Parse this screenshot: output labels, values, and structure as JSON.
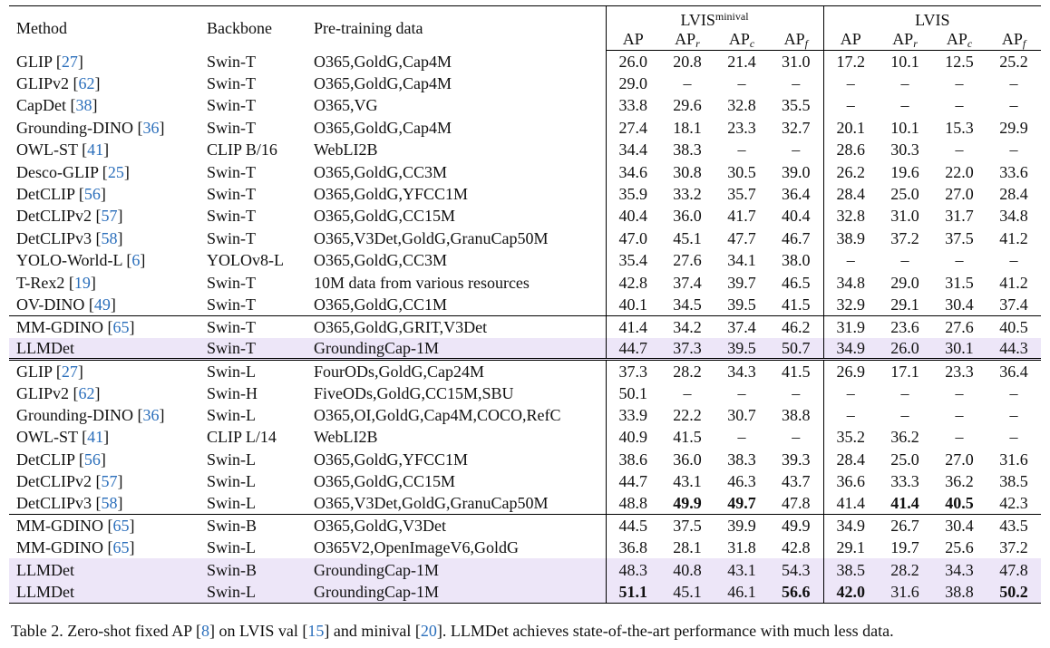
{
  "header": {
    "columns": [
      "Method",
      "Backbone",
      "Pre-training data"
    ],
    "groups": [
      {
        "text": "LVIS",
        "sup": "minival"
      },
      {
        "text": "LVIS"
      }
    ],
    "metrics": [
      {
        "base": "AP"
      },
      {
        "base": "AP",
        "sub": "r"
      },
      {
        "base": "AP",
        "sub": "c"
      },
      {
        "base": "AP",
        "sub": "f"
      }
    ]
  },
  "sections": [
    {
      "rows": [
        {
          "method": [
            "GLIP [",
            "27",
            "]"
          ],
          "backbone": "Swin-T",
          "data": "O365,GoldG,Cap4M",
          "values": [
            "26.0",
            "20.8",
            "21.4",
            "31.0",
            "17.2",
            "10.1",
            "12.5",
            "25.2"
          ]
        },
        {
          "method": [
            "GLIPv2 [",
            "62",
            "]"
          ],
          "backbone": "Swin-T",
          "data": "O365,GoldG,Cap4M",
          "values": [
            "29.0",
            "–",
            "–",
            "–",
            "–",
            "–",
            "–",
            "–"
          ]
        },
        {
          "method": [
            "CapDet [",
            "38",
            "]"
          ],
          "backbone": "Swin-T",
          "data": "O365,VG",
          "values": [
            "33.8",
            "29.6",
            "32.8",
            "35.5",
            "–",
            "–",
            "–",
            "–"
          ]
        },
        {
          "method": [
            "Grounding-DINO [",
            "36",
            "]"
          ],
          "backbone": "Swin-T",
          "data": "O365,GoldG,Cap4M",
          "values": [
            "27.4",
            "18.1",
            "23.3",
            "32.7",
            "20.1",
            "10.1",
            "15.3",
            "29.9"
          ]
        },
        {
          "method": [
            "OWL-ST [",
            "41",
            "]"
          ],
          "backbone": "CLIP B/16",
          "data": "WebLI2B",
          "values": [
            "34.4",
            "38.3",
            "–",
            "–",
            "28.6",
            "30.3",
            "–",
            "–"
          ]
        },
        {
          "method": [
            "Desco-GLIP [",
            "25",
            "]"
          ],
          "backbone": "Swin-T",
          "data": "O365,GoldG,CC3M",
          "values": [
            "34.6",
            "30.8",
            "30.5",
            "39.0",
            "26.2",
            "19.6",
            "22.0",
            "33.6"
          ]
        },
        {
          "method": [
            "DetCLIP [",
            "56",
            "]"
          ],
          "backbone": "Swin-T",
          "data": "O365,GoldG,YFCC1M",
          "values": [
            "35.9",
            "33.2",
            "35.7",
            "36.4",
            "28.4",
            "25.0",
            "27.0",
            "28.4"
          ]
        },
        {
          "method": [
            "DetCLIPv2 [",
            "57",
            "]"
          ],
          "backbone": "Swin-T",
          "data": "O365,GoldG,CC15M",
          "values": [
            "40.4",
            "36.0",
            "41.7",
            "40.4",
            "32.8",
            "31.0",
            "31.7",
            "34.8"
          ]
        },
        {
          "method": [
            "DetCLIPv3 [",
            "58",
            "]"
          ],
          "backbone": "Swin-T",
          "data": "O365,V3Det,GoldG,GranuCap50M",
          "values": [
            "47.0",
            "45.1",
            "47.7",
            "46.7",
            "38.9",
            "37.2",
            "37.5",
            "41.2"
          ]
        },
        {
          "method": [
            "YOLO-World-L [",
            "6",
            "]"
          ],
          "backbone": "YOLOv8-L",
          "data": "O365,GoldG,CC3M",
          "values": [
            "35.4",
            "27.6",
            "34.1",
            "38.0",
            "–",
            "–",
            "–",
            "–"
          ]
        },
        {
          "method": [
            "T-Rex2 [",
            "19",
            "]"
          ],
          "backbone": "Swin-T",
          "data": "10M data from various resources",
          "values": [
            "42.8",
            "37.4",
            "39.7",
            "46.5",
            "34.8",
            "29.0",
            "31.5",
            "41.2"
          ]
        },
        {
          "method": [
            "OV-DINO [",
            "49",
            "]"
          ],
          "backbone": "Swin-T",
          "data": "O365,GoldG,CC1M",
          "values": [
            "40.1",
            "34.5",
            "39.5",
            "41.5",
            "32.9",
            "29.1",
            "30.4",
            "37.4"
          ]
        }
      ]
    },
    {
      "rows": [
        {
          "method": [
            "MM-GDINO [",
            "65",
            "]"
          ],
          "backbone": "Swin-T",
          "data": "O365,GoldG,GRIT,V3Det",
          "values": [
            "41.4",
            "34.2",
            "37.4",
            "46.2",
            "31.9",
            "23.6",
            "27.6",
            "40.5"
          ]
        },
        {
          "method": [
            "LLMDet"
          ],
          "backbone": "Swin-T",
          "data": "GroundingCap-1M",
          "values": [
            "44.7",
            "37.3",
            "39.5",
            "50.7",
            "34.9",
            "26.0",
            "30.1",
            "44.3"
          ],
          "highlight": true
        }
      ]
    },
    {
      "rows": [
        {
          "method": [
            "GLIP [",
            "27",
            "]"
          ],
          "backbone": "Swin-L",
          "data": "FourODs,GoldG,Cap24M",
          "values": [
            "37.3",
            "28.2",
            "34.3",
            "41.5",
            "26.9",
            "17.1",
            "23.3",
            "36.4"
          ]
        },
        {
          "method": [
            "GLIPv2 [",
            "62",
            "]"
          ],
          "backbone": "Swin-H",
          "data": "FiveODs,GoldG,CC15M,SBU",
          "values": [
            "50.1",
            "–",
            "–",
            "–",
            "–",
            "–",
            "–",
            "–"
          ]
        },
        {
          "method": [
            "Grounding-DINO [",
            "36",
            "]"
          ],
          "backbone": "Swin-L",
          "data": "O365,OI,GoldG,Cap4M,COCO,RefC",
          "values": [
            "33.9",
            "22.2",
            "30.7",
            "38.8",
            "–",
            "–",
            "–",
            "–"
          ]
        },
        {
          "method": [
            "OWL-ST [",
            "41",
            "]"
          ],
          "backbone": "CLIP L/14",
          "data": "WebLI2B",
          "values": [
            "40.9",
            "41.5",
            "–",
            "–",
            "35.2",
            "36.2",
            "–",
            "–"
          ]
        },
        {
          "method": [
            "DetCLIP [",
            "56",
            "]"
          ],
          "backbone": "Swin-L",
          "data": "O365,GoldG,YFCC1M",
          "values": [
            "38.6",
            "36.0",
            "38.3",
            "39.3",
            "28.4",
            "25.0",
            "27.0",
            "31.6"
          ]
        },
        {
          "method": [
            "DetCLIPv2 [",
            "57",
            "]"
          ],
          "backbone": "Swin-L",
          "data": "O365,GoldG,CC15M",
          "values": [
            "44.7",
            "43.1",
            "46.3",
            "43.7",
            "36.6",
            "33.3",
            "36.2",
            "38.5"
          ]
        },
        {
          "method": [
            "DetCLIPv3 [",
            "58",
            "]"
          ],
          "backbone": "Swin-L",
          "data": "O365,V3Det,GoldG,GranuCap50M",
          "values": [
            "48.8",
            "49.9",
            "49.7",
            "47.8",
            "41.4",
            "41.4",
            "40.5",
            "42.3"
          ],
          "bold": [
            1,
            2,
            5,
            6
          ]
        }
      ]
    },
    {
      "rows": [
        {
          "method": [
            "MM-GDINO [",
            "65",
            "]"
          ],
          "backbone": "Swin-B",
          "data": "O365,GoldG,V3Det",
          "values": [
            "44.5",
            "37.5",
            "39.9",
            "49.9",
            "34.9",
            "26.7",
            "30.4",
            "43.5"
          ]
        },
        {
          "method": [
            "MM-GDINO [",
            "65",
            "]"
          ],
          "backbone": "Swin-L",
          "data": "O365V2,OpenImageV6,GoldG",
          "values": [
            "36.8",
            "28.1",
            "31.8",
            "42.8",
            "29.1",
            "19.7",
            "25.6",
            "37.2"
          ]
        },
        {
          "method": [
            "LLMDet"
          ],
          "backbone": "Swin-B",
          "data": "GroundingCap-1M",
          "values": [
            "48.3",
            "40.8",
            "43.1",
            "54.3",
            "38.5",
            "28.2",
            "34.3",
            "47.8"
          ],
          "highlight": true
        },
        {
          "method": [
            "LLMDet"
          ],
          "backbone": "Swin-L",
          "data": "GroundingCap-1M",
          "values": [
            "51.1",
            "45.1",
            "46.1",
            "56.6",
            "42.0",
            "31.6",
            "38.8",
            "50.2"
          ],
          "highlight": true,
          "bold": [
            0,
            3,
            4,
            7
          ]
        }
      ]
    }
  ],
  "caption": [
    "Table 2. Zero-shot fixed AP [",
    "8",
    "] on LVIS val [",
    "15",
    "] and minival [",
    "20",
    "]. LLMDet achieves state-of-the-art performance with much less data."
  ]
}
